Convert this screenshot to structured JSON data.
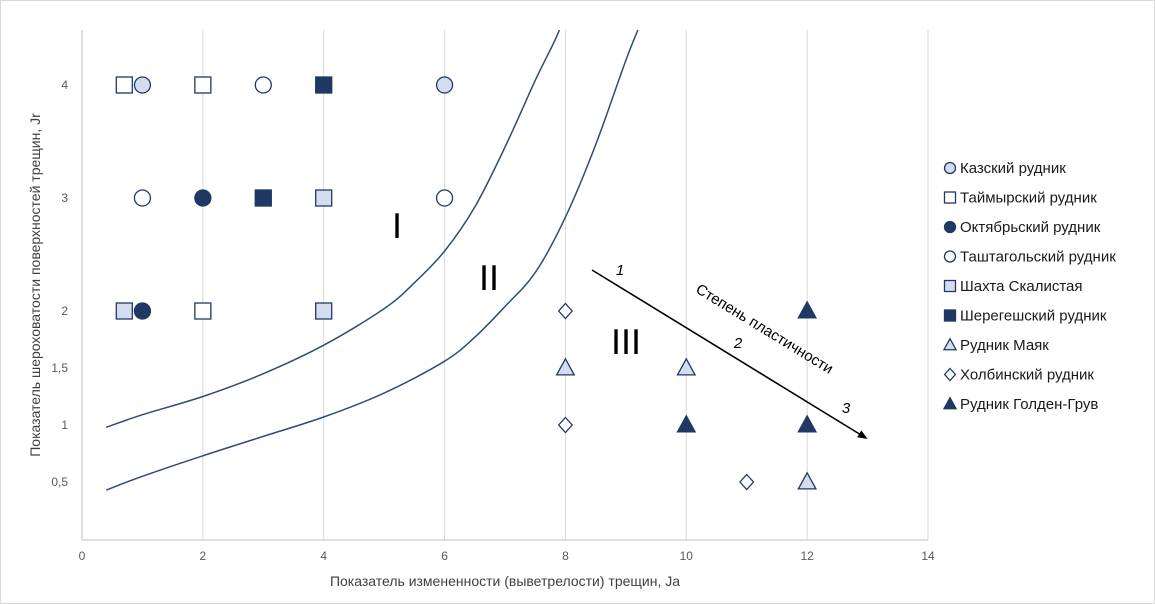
{
  "chart_data": {
    "type": "scatter",
    "xlabel": "Показатель измененности (выветрелости) трещин, Ja",
    "ylabel": "Показатель шероховатости поверхностей трещин, Jr",
    "xlim": [
      0,
      14
    ],
    "x_ticks": [
      0,
      2,
      4,
      6,
      8,
      10,
      12,
      14
    ],
    "x_tick_labels": [
      "0",
      "2",
      "4",
      "6",
      "8",
      "10",
      "12",
      "14"
    ],
    "y_ticks": [
      0.5,
      1,
      1.5,
      2,
      3,
      4
    ],
    "y_tick_labels": [
      "0,5",
      "1",
      "1,5",
      "2",
      "3",
      "4"
    ],
    "grid": "vertical",
    "legend_position": "right",
    "series": [
      {
        "name": "Казский рудник",
        "marker": "circle",
        "fill": "#d6dcf0",
        "stroke": "#1f3864",
        "points": [
          {
            "x": 1,
            "y": 4
          },
          {
            "x": 6,
            "y": 4
          }
        ]
      },
      {
        "name": "Таймырский рудник",
        "marker": "square",
        "fill": "#ffffff",
        "stroke": "#1f3864",
        "points": [
          {
            "x": 0.7,
            "y": 4
          },
          {
            "x": 2,
            "y": 4
          },
          {
            "x": 2,
            "y": 2
          }
        ]
      },
      {
        "name": "Октябрьский рудник",
        "marker": "circle",
        "fill": "#1f3864",
        "stroke": "#1f3864",
        "points": [
          {
            "x": 2,
            "y": 3
          },
          {
            "x": 1,
            "y": 2
          }
        ]
      },
      {
        "name": "Таштагольский рудник",
        "marker": "circle",
        "fill": "#ffffff",
        "stroke": "#1f3864",
        "points": [
          {
            "x": 3,
            "y": 4
          },
          {
            "x": 1,
            "y": 3
          },
          {
            "x": 6,
            "y": 3
          }
        ]
      },
      {
        "name": "Шахта Скалистая",
        "marker": "square",
        "fill": "#d6dcf0",
        "stroke": "#1f3864",
        "points": [
          {
            "x": 4,
            "y": 3
          },
          {
            "x": 0.7,
            "y": 2
          },
          {
            "x": 4,
            "y": 2
          }
        ]
      },
      {
        "name": "Шерегешский рудник",
        "marker": "square",
        "fill": "#1f3864",
        "stroke": "#1f3864",
        "points": [
          {
            "x": 4,
            "y": 4
          },
          {
            "x": 3,
            "y": 3
          }
        ]
      },
      {
        "name": "Рудник Маяк",
        "marker": "triangle",
        "fill": "#d6dcf0",
        "stroke": "#1f3864",
        "points": [
          {
            "x": 8,
            "y": 1.5
          },
          {
            "x": 10,
            "y": 1.5
          },
          {
            "x": 12,
            "y": 0.5
          }
        ]
      },
      {
        "name": "Холбинский рудник",
        "marker": "diamond",
        "fill": "#ffffff",
        "stroke": "#1f3864",
        "points": [
          {
            "x": 8,
            "y": 2
          },
          {
            "x": 8,
            "y": 1
          },
          {
            "x": 11,
            "y": 0.5
          }
        ]
      },
      {
        "name": "Рудник Голден-Грув",
        "marker": "triangle",
        "fill": "#1f3864",
        "stroke": "#1f3864",
        "points": [
          {
            "x": 12,
            "y": 2
          },
          {
            "x": 10,
            "y": 1
          },
          {
            "x": 12,
            "y": 1
          }
        ]
      }
    ],
    "curves": [
      {
        "name": "boundary-1",
        "points": [
          [
            0.4,
            0.98
          ],
          [
            1,
            1.09
          ],
          [
            2,
            1.25
          ],
          [
            3,
            1.45
          ],
          [
            4,
            1.7
          ],
          [
            5,
            2.02
          ],
          [
            5.5,
            2.25
          ],
          [
            6,
            2.53
          ],
          [
            6.5,
            2.92
          ],
          [
            7,
            3.45
          ],
          [
            7.5,
            4.05
          ],
          [
            7.8,
            4.45
          ],
          [
            7.9,
            4.6
          ]
        ]
      },
      {
        "name": "boundary-2",
        "points": [
          [
            0.4,
            0.43
          ],
          [
            1,
            0.55
          ],
          [
            2,
            0.73
          ],
          [
            3,
            0.9
          ],
          [
            4,
            1.07
          ],
          [
            5,
            1.28
          ],
          [
            6,
            1.56
          ],
          [
            6.5,
            1.77
          ],
          [
            7,
            2.04
          ],
          [
            7.5,
            2.34
          ],
          [
            8,
            2.83
          ],
          [
            8.5,
            3.47
          ],
          [
            9,
            4.27
          ],
          [
            9.2,
            4.6
          ]
        ]
      }
    ],
    "annotations": {
      "zone_1": "I",
      "zone_2": "II",
      "zone_3": "III",
      "arrow_label": "Степень пластичности",
      "arrow_num_1": "1",
      "arrow_num_2": "2",
      "arrow_num_3": "3"
    }
  }
}
